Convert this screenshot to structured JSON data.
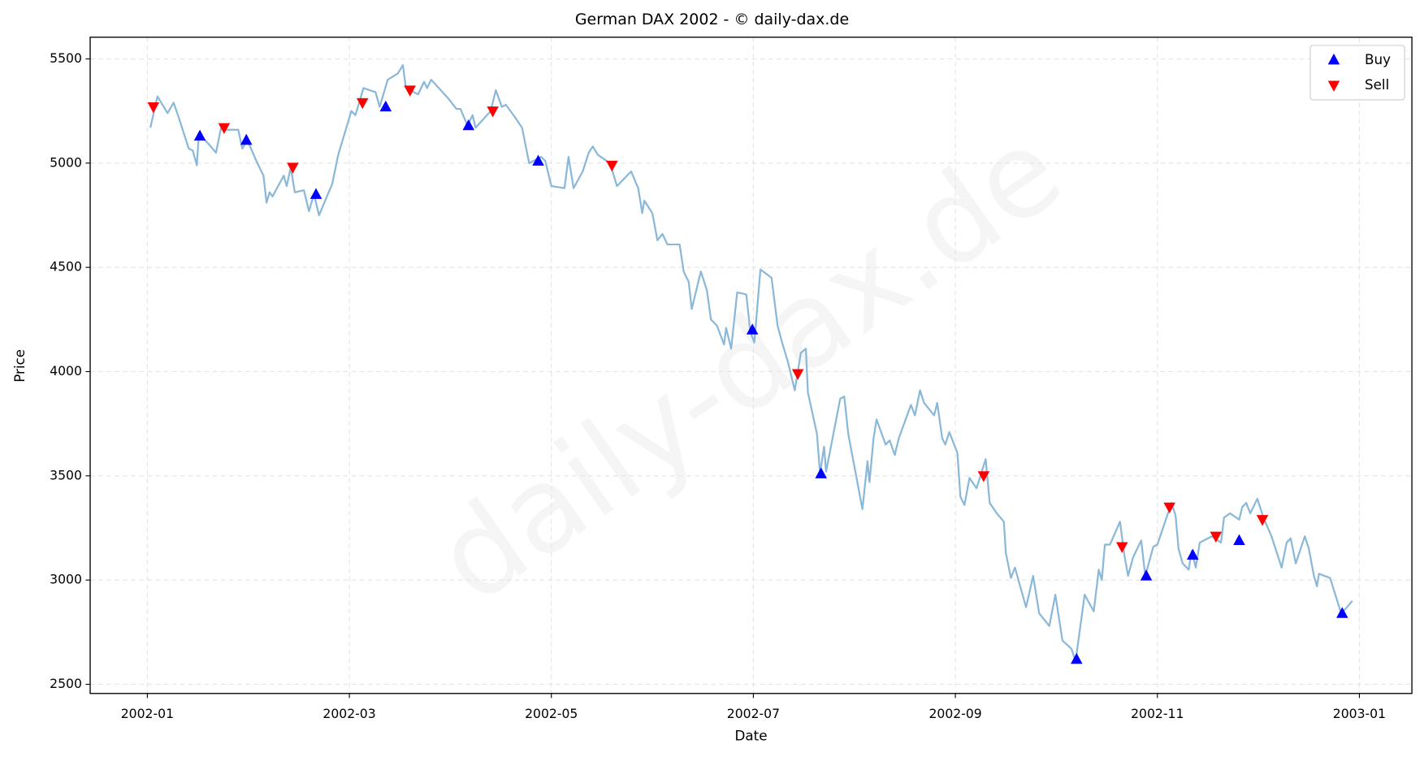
{
  "chart_data": {
    "type": "line",
    "title": "German DAX 2002 - © daily-dax.de",
    "watermark": "daily-dax.de",
    "x_label": "Date",
    "y_label": "Price",
    "color": "#8ab8d9",
    "grid": true,
    "legend": "upper right",
    "xlim": [
      -0.566,
      12.52
    ],
    "ylim": [
      2456,
      5604
    ],
    "xticks": [
      {
        "value": 0,
        "label": "2002-01"
      },
      {
        "value": 2,
        "label": "2002-03"
      },
      {
        "value": 4,
        "label": "2002-05"
      },
      {
        "value": 6,
        "label": "2002-07"
      },
      {
        "value": 8,
        "label": "2002-09"
      },
      {
        "value": 10,
        "label": "2002-11"
      },
      {
        "value": 12,
        "label": "2003-01"
      }
    ],
    "yticks": [
      2500,
      3000,
      3500,
      4000,
      4500,
      5000,
      5500
    ],
    "x": [
      0.03,
      0.1,
      0.2,
      0.26,
      0.31,
      0.41,
      0.45,
      0.49,
      0.51,
      0.61,
      0.68,
      0.73,
      0.79,
      0.9,
      0.94,
      0.99,
      1.08,
      1.15,
      1.18,
      1.21,
      1.24,
      1.35,
      1.38,
      1.42,
      1.46,
      1.55,
      1.6,
      1.65,
      1.7,
      1.83,
      1.89,
      2.02,
      2.06,
      2.14,
      2.26,
      2.3,
      2.38,
      2.48,
      2.53,
      2.56,
      2.68,
      2.74,
      2.77,
      2.81,
      2.98,
      3.06,
      3.1,
      3.17,
      3.22,
      3.25,
      3.4,
      3.45,
      3.51,
      3.55,
      3.64,
      3.71,
      3.78,
      3.9,
      3.94,
      4.0,
      4.13,
      4.17,
      4.22,
      4.31,
      4.37,
      4.41,
      4.46,
      4.58,
      4.65,
      4.79,
      4.86,
      4.9,
      4.92,
      5.0,
      5.05,
      5.1,
      5.15,
      5.27,
      5.31,
      5.36,
      5.39,
      5.48,
      5.54,
      5.58,
      5.64,
      5.71,
      5.73,
      5.78,
      5.84,
      5.93,
      5.97,
      6.01,
      6.07,
      6.18,
      6.24,
      6.29,
      6.34,
      6.41,
      6.47,
      6.52,
      6.54,
      6.63,
      6.66,
      6.7,
      6.72,
      6.86,
      6.9,
      6.94,
      7.08,
      7.13,
      7.15,
      7.19,
      7.22,
      7.31,
      7.35,
      7.4,
      7.44,
      7.56,
      7.6,
      7.65,
      7.69,
      7.79,
      7.82,
      7.87,
      7.9,
      7.94,
      8.02,
      8.05,
      8.09,
      8.14,
      8.21,
      8.3,
      8.34,
      8.41,
      8.48,
      8.5,
      8.55,
      8.59,
      8.7,
      8.77,
      8.83,
      8.93,
      8.99,
      9.06,
      9.15,
      9.19,
      9.28,
      9.37,
      9.42,
      9.45,
      9.48,
      9.53,
      9.63,
      9.67,
      9.71,
      9.76,
      9.84,
      9.88,
      9.96,
      10.0,
      10.14,
      10.18,
      10.21,
      10.25,
      10.31,
      10.34,
      10.38,
      10.42,
      10.54,
      10.63,
      10.66,
      10.72,
      10.81,
      10.84,
      10.88,
      10.92,
      10.99,
      11.05,
      11.13,
      11.23,
      11.28,
      11.32,
      11.37,
      11.46,
      11.5,
      11.55,
      11.58,
      11.6,
      11.71,
      11.82,
      11.86,
      11.93
    ],
    "values": [
      5170,
      5320,
      5240,
      5290,
      5220,
      5070,
      5060,
      4990,
      5140,
      5090,
      5050,
      5170,
      5160,
      5160,
      5070,
      5110,
      5010,
      4940,
      4810,
      4860,
      4840,
      4940,
      4890,
      4980,
      4860,
      4870,
      4770,
      4850,
      4750,
      4900,
      5040,
      5250,
      5230,
      5360,
      5340,
      5270,
      5400,
      5430,
      5470,
      5360,
      5330,
      5390,
      5360,
      5400,
      5310,
      5260,
      5260,
      5180,
      5230,
      5170,
      5250,
      5350,
      5270,
      5280,
      5220,
      5170,
      5000,
      5030,
      5010,
      4890,
      4880,
      5030,
      4880,
      4960,
      5050,
      5080,
      5040,
      5000,
      4890,
      4960,
      4880,
      4760,
      4820,
      4760,
      4630,
      4660,
      4610,
      4610,
      4480,
      4430,
      4300,
      4480,
      4390,
      4250,
      4220,
      4130,
      4210,
      4110,
      4380,
      4370,
      4190,
      4140,
      4490,
      4450,
      4220,
      4130,
      4050,
      3910,
      4090,
      4110,
      3900,
      3700,
      3510,
      3640,
      3520,
      3870,
      3880,
      3700,
      3340,
      3570,
      3470,
      3680,
      3770,
      3650,
      3670,
      3600,
      3680,
      3840,
      3790,
      3910,
      3850,
      3790,
      3850,
      3680,
      3650,
      3710,
      3610,
      3400,
      3360,
      3490,
      3440,
      3580,
      3370,
      3320,
      3280,
      3130,
      3010,
      3060,
      2870,
      3020,
      2840,
      2780,
      2930,
      2710,
      2670,
      2610,
      2930,
      2850,
      3050,
      3000,
      3170,
      3170,
      3280,
      3130,
      3020,
      3110,
      3190,
      3020,
      3160,
      3170,
      3370,
      3310,
      3150,
      3080,
      3050,
      3140,
      3060,
      3180,
      3210,
      3180,
      3300,
      3320,
      3290,
      3350,
      3370,
      3320,
      3390,
      3300,
      3210,
      3060,
      3180,
      3200,
      3080,
      3210,
      3150,
      3020,
      2970,
      3030,
      3010,
      2840,
      2860,
      2900
    ],
    "series": [
      {
        "name": "Buy",
        "color": "#0000ff",
        "marker": "up",
        "x": [
          0.52,
          0.98,
          1.67,
          2.36,
          3.18,
          3.87,
          5.99,
          6.67,
          9.2,
          9.89,
          10.35,
          10.81,
          11.83
        ],
        "values": [
          5130,
          5110,
          4850,
          5270,
          5180,
          5010,
          4200,
          3510,
          2620,
          3020,
          3120,
          3190,
          2840
        ]
      },
      {
        "name": "Sell",
        "color": "#ff0000",
        "marker": "down",
        "x": [
          0.06,
          0.76,
          1.44,
          2.13,
          2.6,
          3.42,
          4.6,
          6.44,
          8.28,
          9.65,
          10.12,
          10.58,
          11.04
        ],
        "values": [
          5270,
          5170,
          4980,
          5290,
          5350,
          5250,
          4990,
          3990,
          3500,
          3160,
          3350,
          3210,
          3290
        ]
      }
    ]
  }
}
